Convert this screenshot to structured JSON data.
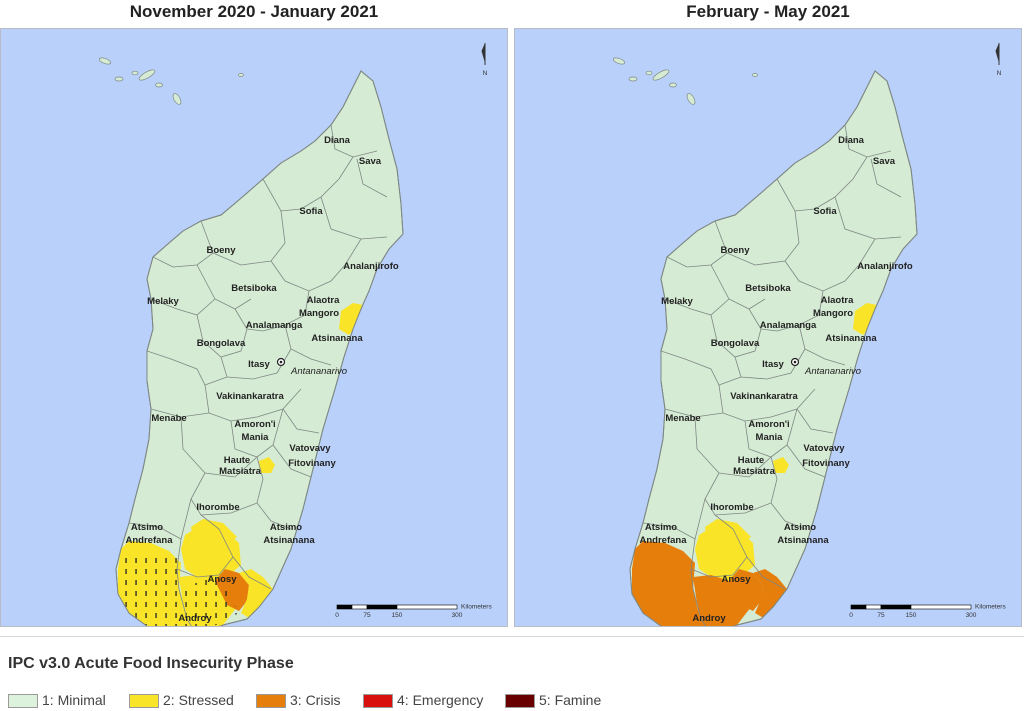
{
  "panels": [
    {
      "title": "November 2020 - January 2021",
      "regions": {
        "diana": "Diana",
        "sava": "Sava",
        "sofia": "Sofia",
        "boeny": "Boeny",
        "analanjirofo": "Analanjirofo",
        "betsiboka": "Betsiboka",
        "melaky": "Melaky",
        "alaotra1": "Alaotra",
        "alaotra2": "Mangoro",
        "analamanga": "Analamanga",
        "atsinanana": "Atsinanana",
        "bongolava": "Bongolava",
        "itasy": "Itasy",
        "antananarivo": "Antananarivo",
        "vakinankaratra": "Vakinankaratra",
        "menabe": "Menabe",
        "amoroni1": "Amoron'i",
        "amoroni2": "Mania",
        "vatovavy1": "Vatovavy",
        "vatovavy2": "Fitovinany",
        "haute1": "Haute",
        "haute2": "Matsiatra",
        "ihorombe": "Ihorombe",
        "atsimoandrefana1": "Atsimo",
        "atsimoandrefana2": "Andrefana",
        "atsimoatsinanana1": "Atsimo",
        "atsimoatsinanana2": "Atsinanana",
        "anosy": "Anosy",
        "androy": "Androy"
      },
      "phases": {
        "south_west": "stressed",
        "south_center": "stressed",
        "androy": "stressed",
        "anosy_west": "crisis",
        "anosy_east": "stressed",
        "ihorombe_south": "stressed",
        "fitovinany_spot": "stressed",
        "atsinanana_spot": "stressed"
      },
      "hatched": true
    },
    {
      "title": "February - May 2021",
      "regions": {
        "diana": "Diana",
        "sava": "Sava",
        "sofia": "Sofia",
        "boeny": "Boeny",
        "analanjirofo": "Analanjirofo",
        "betsiboka": "Betsiboka",
        "melaky": "Melaky",
        "alaotra1": "Alaotra",
        "alaotra2": "Mangoro",
        "analamanga": "Analamanga",
        "atsinanana": "Atsinanana",
        "bongolava": "Bongolava",
        "itasy": "Itasy",
        "antananarivo": "Antananarivo",
        "vakinankaratra": "Vakinankaratra",
        "menabe": "Menabe",
        "amoroni1": "Amoron'i",
        "amoroni2": "Mania",
        "vatovavy1": "Vatovavy",
        "vatovavy2": "Fitovinany",
        "haute1": "Haute",
        "haute2": "Matsiatra",
        "ihorombe": "Ihorombe",
        "atsimoandrefana1": "Atsimo",
        "atsimoandrefana2": "Andrefana",
        "atsimoatsinanana1": "Atsimo",
        "atsimoatsinanana2": "Atsinanana",
        "anosy": "Anosy",
        "androy": "Androy"
      },
      "phases": {
        "south_west": "crisis",
        "south_center": "stressed",
        "androy": "crisis",
        "anosy_west": "crisis",
        "anosy_east": "crisis",
        "ihorombe_south": "stressed",
        "fitovinany_spot": "stressed",
        "atsinanana_spot": "stressed"
      },
      "hatched": false
    }
  ],
  "scale_bar": {
    "unit": "Kilometers",
    "ticks": [
      "0",
      "75",
      "150",
      "300"
    ]
  },
  "north_arrow": "N",
  "legend": {
    "title": "IPC v3.0 Acute Food Insecurity Phase",
    "items": [
      {
        "id": "minimal",
        "label": "1: Minimal",
        "color": "#ddf2dc"
      },
      {
        "id": "stressed",
        "label": "2: Stressed",
        "color": "#fae428"
      },
      {
        "id": "crisis",
        "label": "3: Crisis",
        "color": "#e67e0c"
      },
      {
        "id": "emergency",
        "label": "4: Emergency",
        "color": "#d9110e"
      },
      {
        "id": "famine",
        "label": "5: Famine",
        "color": "#690000"
      }
    ]
  },
  "colors": {
    "sea": "#b9d0fb",
    "land": "#d6ebd4",
    "border": "#7e8883"
  }
}
